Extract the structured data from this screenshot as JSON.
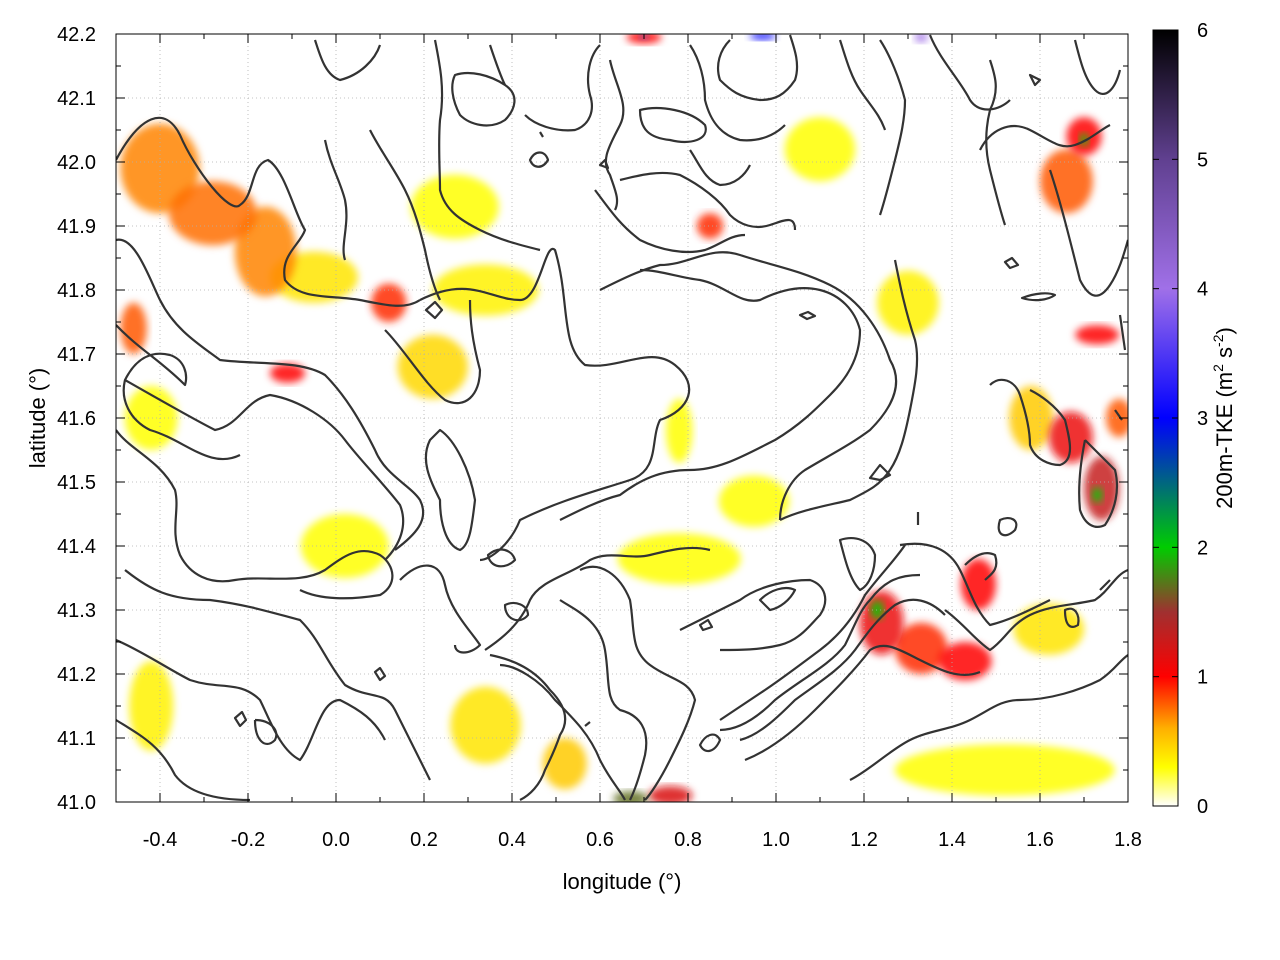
{
  "chart_data": {
    "type": "heatmap",
    "xlabel": "longitude (°)",
    "ylabel": "latitude (°)",
    "colorbar_label": "200m-TKE (m² s⁻²)",
    "colorbar_label_parts": {
      "main": "200m-TKE (m",
      "sup1": "2",
      "mid": " s",
      "sup2": "-2",
      "end": ")"
    },
    "xlim": [
      -0.5,
      1.8
    ],
    "ylim": [
      41.0,
      42.2
    ],
    "clim": [
      0,
      6
    ],
    "xticks": [
      "-0.4",
      "-0.2",
      "0.0",
      "0.2",
      "0.4",
      "0.6",
      "0.8",
      "1.0",
      "1.2",
      "1.4",
      "1.6",
      "1.8"
    ],
    "xtick_values": [
      -0.4,
      -0.2,
      0.0,
      0.2,
      0.4,
      0.6,
      0.8,
      1.0,
      1.2,
      1.4,
      1.6,
      1.8
    ],
    "yticks": [
      "41.0",
      "41.1",
      "41.2",
      "41.3",
      "41.4",
      "41.5",
      "41.6",
      "41.7",
      "41.8",
      "41.9",
      "42.0",
      "42.1",
      "42.2"
    ],
    "ytick_values": [
      41.0,
      41.1,
      41.2,
      41.3,
      41.4,
      41.5,
      41.6,
      41.7,
      41.8,
      41.9,
      42.0,
      42.1,
      42.2
    ],
    "cticks": [
      "0",
      "1",
      "2",
      "3",
      "4",
      "5",
      "6"
    ],
    "ctick_values": [
      0,
      1,
      2,
      3,
      4,
      5,
      6
    ],
    "grid": true,
    "colormap": [
      {
        "v": 0.0,
        "color": "#ffffff"
      },
      {
        "v": 0.3,
        "color": "#ffff00"
      },
      {
        "v": 0.6,
        "color": "#ffb000"
      },
      {
        "v": 1.0,
        "color": "#ff0000"
      },
      {
        "v": 1.5,
        "color": "#a03030"
      },
      {
        "v": 2.0,
        "color": "#00cc00"
      },
      {
        "v": 3.0,
        "color": "#0000ff"
      },
      {
        "v": 4.0,
        "color": "#a070e8"
      },
      {
        "v": 5.0,
        "color": "#604090"
      },
      {
        "v": 6.0,
        "color": "#000000"
      }
    ],
    "tke_patches": [
      {
        "lon": -0.4,
        "lat": 41.99,
        "rlon": 0.09,
        "rlat": 0.07,
        "v": 0.7
      },
      {
        "lon": -0.28,
        "lat": 41.92,
        "rlon": 0.1,
        "rlat": 0.05,
        "v": 0.75
      },
      {
        "lon": -0.16,
        "lat": 41.86,
        "rlon": 0.07,
        "rlat": 0.07,
        "v": 0.7
      },
      {
        "lon": -0.05,
        "lat": 41.82,
        "rlon": 0.1,
        "rlat": 0.04,
        "v": 0.4
      },
      {
        "lon": 0.12,
        "lat": 41.78,
        "rlon": 0.04,
        "rlat": 0.03,
        "v": 0.9
      },
      {
        "lon": 0.22,
        "lat": 41.68,
        "rlon": 0.08,
        "rlat": 0.05,
        "v": 0.45
      },
      {
        "lon": 0.34,
        "lat": 41.8,
        "rlon": 0.12,
        "rlat": 0.04,
        "v": 0.35
      },
      {
        "lon": 0.27,
        "lat": 41.93,
        "rlon": 0.1,
        "rlat": 0.05,
        "v": 0.3
      },
      {
        "lon": -0.46,
        "lat": 41.74,
        "rlon": 0.03,
        "rlat": 0.04,
        "v": 0.8
      },
      {
        "lon": -0.11,
        "lat": 41.67,
        "rlon": 0.04,
        "rlat": 0.015,
        "v": 1.0
      },
      {
        "lon": -0.42,
        "lat": 41.6,
        "rlon": 0.06,
        "rlat": 0.05,
        "v": 0.3
      },
      {
        "lon": -0.42,
        "lat": 41.15,
        "rlon": 0.05,
        "rlat": 0.07,
        "v": 0.35
      },
      {
        "lon": 0.34,
        "lat": 41.12,
        "rlon": 0.08,
        "rlat": 0.06,
        "v": 0.4
      },
      {
        "lon": 0.52,
        "lat": 41.06,
        "rlon": 0.05,
        "rlat": 0.04,
        "v": 0.5
      },
      {
        "lon": 0.67,
        "lat": 41.005,
        "rlon": 0.04,
        "rlat": 0.012,
        "v": 1.7
      },
      {
        "lon": 0.76,
        "lat": 41.01,
        "rlon": 0.05,
        "rlat": 0.015,
        "v": 1.2
      },
      {
        "lon": 0.78,
        "lat": 41.38,
        "rlon": 0.14,
        "rlat": 0.04,
        "v": 0.3
      },
      {
        "lon": 0.95,
        "lat": 41.47,
        "rlon": 0.08,
        "rlat": 0.04,
        "v": 0.3
      },
      {
        "lon": 1.24,
        "lat": 41.28,
        "rlon": 0.05,
        "rlat": 0.05,
        "v": 1.1
      },
      {
        "lon": 1.23,
        "lat": 41.3,
        "rlon": 0.015,
        "rlat": 0.015,
        "v": 2.0
      },
      {
        "lon": 1.33,
        "lat": 41.24,
        "rlon": 0.06,
        "rlat": 0.04,
        "v": 0.9
      },
      {
        "lon": 1.43,
        "lat": 41.22,
        "rlon": 0.06,
        "rlat": 0.03,
        "v": 1.0
      },
      {
        "lon": 1.46,
        "lat": 41.34,
        "rlon": 0.04,
        "rlat": 0.04,
        "v": 1.0
      },
      {
        "lon": 1.62,
        "lat": 41.27,
        "rlon": 0.08,
        "rlat": 0.04,
        "v": 0.4
      },
      {
        "lon": 1.67,
        "lat": 41.57,
        "rlon": 0.05,
        "rlat": 0.04,
        "v": 1.1
      },
      {
        "lon": 1.74,
        "lat": 41.49,
        "rlon": 0.04,
        "rlat": 0.05,
        "v": 1.3
      },
      {
        "lon": 1.73,
        "lat": 41.48,
        "rlon": 0.012,
        "rlat": 0.012,
        "v": 2.0
      },
      {
        "lon": 1.58,
        "lat": 41.6,
        "rlon": 0.05,
        "rlat": 0.05,
        "v": 0.5
      },
      {
        "lon": 1.73,
        "lat": 41.73,
        "rlon": 0.05,
        "rlat": 0.015,
        "v": 1.0
      },
      {
        "lon": 1.66,
        "lat": 41.97,
        "rlon": 0.06,
        "rlat": 0.05,
        "v": 0.8
      },
      {
        "lon": 1.7,
        "lat": 42.04,
        "rlon": 0.04,
        "rlat": 0.03,
        "v": 1.0
      },
      {
        "lon": 1.7,
        "lat": 42.035,
        "rlon": 0.01,
        "rlat": 0.01,
        "v": 2.0
      },
      {
        "lon": 1.78,
        "lat": 41.6,
        "rlon": 0.03,
        "rlat": 0.03,
        "v": 0.8
      },
      {
        "lon": 1.3,
        "lat": 41.78,
        "rlon": 0.07,
        "rlat": 0.05,
        "v": 0.35
      },
      {
        "lon": 1.1,
        "lat": 42.02,
        "rlon": 0.08,
        "rlat": 0.05,
        "v": 0.3
      },
      {
        "lon": 0.7,
        "lat": 42.195,
        "rlon": 0.04,
        "rlat": 0.01,
        "v": 1.0
      },
      {
        "lon": 0.7,
        "lat": 42.197,
        "rlon": 0.01,
        "rlat": 0.006,
        "v": 4.5
      },
      {
        "lon": 0.97,
        "lat": 42.197,
        "rlon": 0.03,
        "rlat": 0.006,
        "v": 3.0
      },
      {
        "lon": 1.33,
        "lat": 42.195,
        "rlon": 0.015,
        "rlat": 0.008,
        "v": 4.0
      },
      {
        "lon": 0.85,
        "lat": 41.9,
        "rlon": 0.03,
        "rlat": 0.02,
        "v": 0.9
      },
      {
        "lon": 0.02,
        "lat": 41.4,
        "rlon": 0.1,
        "rlat": 0.05,
        "v": 0.3
      },
      {
        "lon": 1.52,
        "lat": 41.05,
        "rlon": 0.25,
        "rlat": 0.04,
        "v": 0.3
      },
      {
        "lon": 0.78,
        "lat": 41.58,
        "rlon": 0.03,
        "rlat": 0.05,
        "v": 0.3
      }
    ]
  }
}
